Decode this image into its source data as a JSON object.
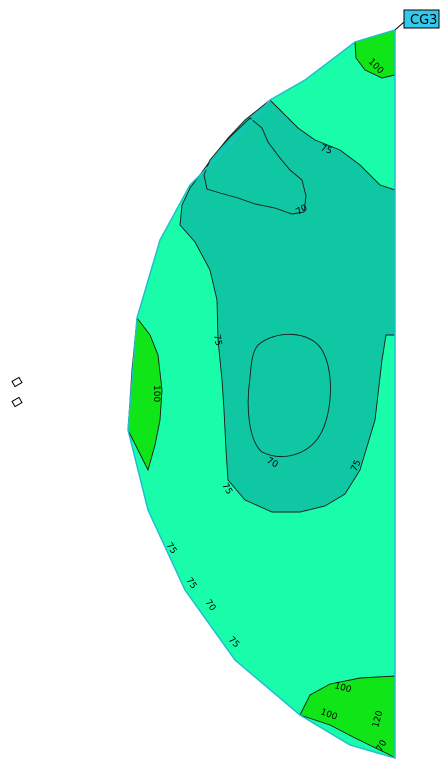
{
  "section_tag": "CG3",
  "colors": {
    "light_zone": "#19fdab",
    "mid_zone": "#0fc8a3",
    "high_zone": "#10e617",
    "outline": "#1ebfd0",
    "contour_line": "#1a1a1a",
    "tag_fill": "#34c8ea"
  },
  "contour_labels": {
    "top_100": "100",
    "upper_75": "75",
    "upper_70": "70",
    "left_75": "75",
    "left_100": "100",
    "inner_70": "70",
    "inner_75_bottom": "75",
    "right_75": "75",
    "lower_75_a": "75",
    "lower_75_b": "75",
    "lower_70": "70",
    "lower_75_c": "75",
    "bottom_100_a": "100",
    "bottom_100_b": "100",
    "bottom_120": "120",
    "bottom_tip": "70"
  },
  "icons": [
    "small-square-icon",
    "small-square-icon"
  ]
}
